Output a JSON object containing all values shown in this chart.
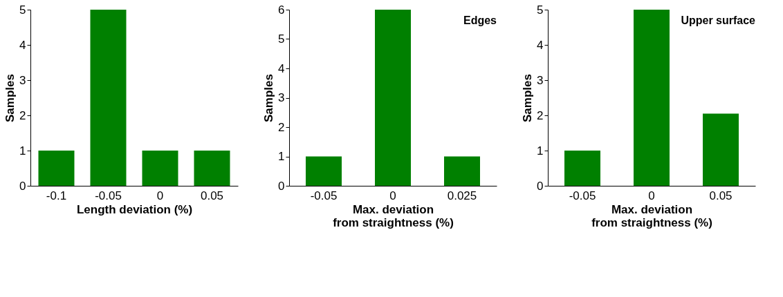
{
  "chart_data": [
    {
      "type": "bar",
      "categories": [
        "-0.1",
        "-0.05",
        "0",
        "0.05"
      ],
      "values": [
        1,
        5,
        1,
        1
      ],
      "color": "#008000",
      "xlabel": "Length deviation (%)",
      "ylabel": "Samples",
      "ylim": [
        0,
        5
      ],
      "yticks": [
        0,
        1,
        2,
        3,
        4,
        5
      ],
      "grid": false
    },
    {
      "type": "bar",
      "categories": [
        "-0.05",
        "0",
        "0.025"
      ],
      "values": [
        1,
        6,
        1
      ],
      "color": "#008000",
      "xlabel": "Max. deviation\nfrom straightness (%)",
      "ylabel": "Samples",
      "ylim": [
        0,
        6
      ],
      "yticks": [
        0,
        1,
        2,
        3,
        4,
        5,
        6
      ],
      "grid": false,
      "annotations": [
        "Edges"
      ]
    },
    {
      "type": "bar",
      "categories": [
        "-0.05",
        "0",
        "0.05"
      ],
      "values": [
        1,
        5,
        2.05
      ],
      "color": "#008000",
      "xlabel": "Max. deviation\nfrom straightness (%)",
      "ylabel": "Samples",
      "ylim": [
        0,
        5
      ],
      "yticks": [
        0,
        1,
        2,
        3,
        4,
        5
      ],
      "grid": false,
      "annotations": [
        "Upper surface"
      ]
    }
  ]
}
